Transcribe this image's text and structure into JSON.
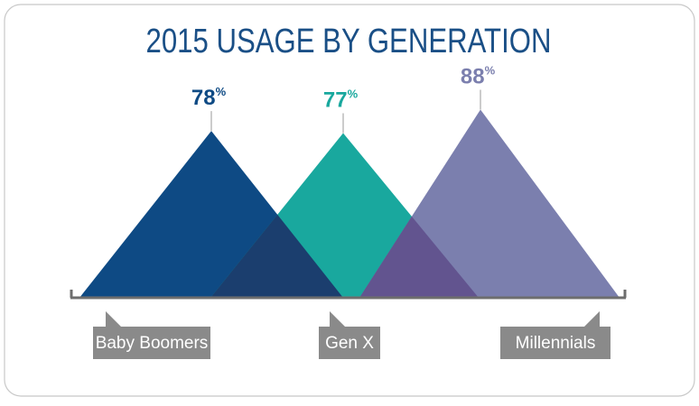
{
  "chart_data": {
    "type": "triangle",
    "title": "2015 USAGE BY GENERATION",
    "categories": [
      "Baby Boomers",
      "Gen X",
      "Millennials"
    ],
    "values": [
      78,
      77,
      88
    ],
    "value_labels": [
      "78%",
      "77%",
      "88%"
    ],
    "colors": [
      "#0e4a84",
      "#19a89e",
      "#7b7fae"
    ]
  }
}
